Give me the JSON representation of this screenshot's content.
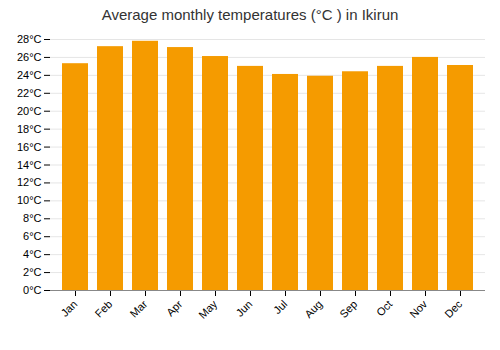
{
  "chart_data": {
    "type": "bar",
    "title": "Average monthly temperatures (°C ) in Ikirun",
    "categories": [
      "Jan",
      "Feb",
      "Mar",
      "Apr",
      "May",
      "Jun",
      "Jul",
      "Aug",
      "Sep",
      "Oct",
      "Nov",
      "Dec"
    ],
    "values": [
      25.3,
      27.2,
      27.8,
      27.1,
      26.1,
      25.0,
      24.1,
      23.9,
      24.4,
      25.0,
      26.0,
      25.1
    ],
    "color": "#F59B00",
    "ylim": [
      0,
      28
    ],
    "yticks": [
      {
        "value": 0,
        "label": "0°C"
      },
      {
        "value": 2,
        "label": "2°C"
      },
      {
        "value": 4,
        "label": "4°C"
      },
      {
        "value": 6,
        "label": "6°C"
      },
      {
        "value": 8,
        "label": "8°C"
      },
      {
        "value": 10,
        "label": "10°C"
      },
      {
        "value": 12,
        "label": "12°C"
      },
      {
        "value": 14,
        "label": "14°C"
      },
      {
        "value": 16,
        "label": "16°C"
      },
      {
        "value": 18,
        "label": "18°C"
      },
      {
        "value": 20,
        "label": "20°C"
      },
      {
        "value": 22,
        "label": "22°C"
      },
      {
        "value": 24,
        "label": "24°C"
      },
      {
        "value": 26,
        "label": "26°C"
      },
      {
        "value": 28,
        "label": "28°C"
      }
    ],
    "grid": true
  }
}
